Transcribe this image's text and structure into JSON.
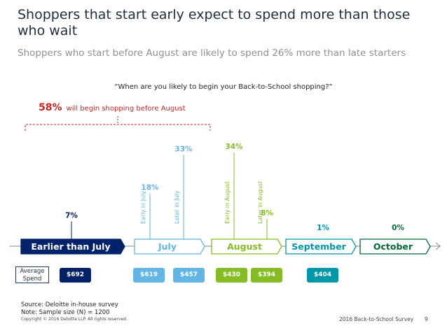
{
  "header": {
    "title": "Shoppers that start early expect to spend more than those who wait",
    "subtitle": "Shoppers who start before August are likely to spend 26% more than late starters"
  },
  "question": "“When are you likely to begin your Back-to-School shopping?”",
  "callout": {
    "value": "58%",
    "text": "will begin shopping before August"
  },
  "chart_data": {
    "type": "bar",
    "categories": [
      "Earlier than July",
      "July",
      "August",
      "September",
      "October"
    ],
    "bars": [
      {
        "category": "Earlier than July",
        "label": "",
        "value": 7,
        "display": "7%"
      },
      {
        "category": "July",
        "label": "Early in July",
        "value": 18,
        "display": "18%"
      },
      {
        "category": "July",
        "label": "Later in July",
        "value": 33,
        "display": "33%"
      },
      {
        "category": "August",
        "label": "Early in August",
        "value": 34,
        "display": "34%"
      },
      {
        "category": "August",
        "label": "Later in August",
        "value": 8,
        "display": "8%"
      },
      {
        "category": "September",
        "label": "",
        "value": 1,
        "display": "1%"
      },
      {
        "category": "October",
        "label": "",
        "value": 0,
        "display": "0%"
      }
    ],
    "average_spend": [
      "$692",
      "$619",
      "$457",
      "$430",
      "$394",
      "$404"
    ],
    "colors": {
      "earlier": "#012169",
      "july": "#62b5e5",
      "august": "#86bc25",
      "september": "#0097a9",
      "october": "#046a38"
    }
  },
  "avg_label": "Average Spend",
  "source": {
    "line1": "Source: Deloitte in-house survey",
    "line2": "Note:  Sample size (N) = 1200"
  },
  "footer": {
    "copyright": "Copyright © 2016 Deloitte LLP. All rights reserved.",
    "survey": "2016 Back-to-School Survey",
    "page": "9"
  }
}
